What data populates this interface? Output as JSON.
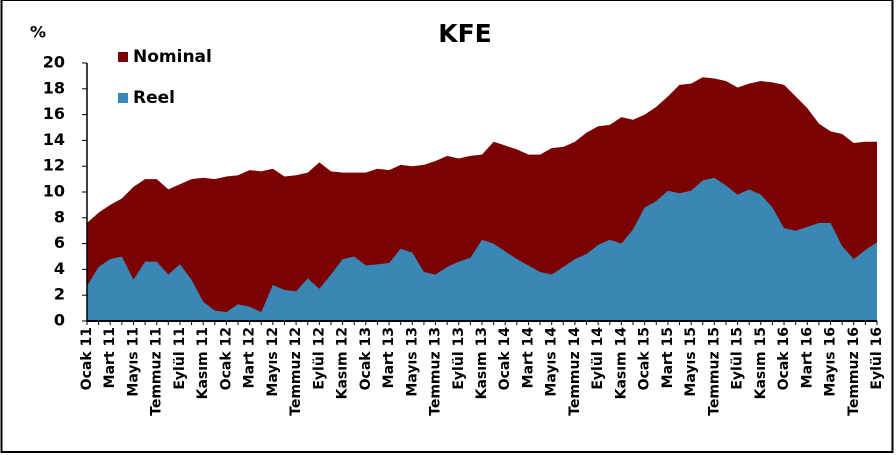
{
  "chart_data": {
    "type": "area",
    "title": "KFE",
    "y_label": "%",
    "categories": [
      "Ocak 11",
      null,
      "Mart 11",
      null,
      "Mayıs 11",
      null,
      "Temmuz 11",
      null,
      "Eylül 11",
      null,
      "Kasım 11",
      null,
      "Ocak 12",
      null,
      "Mart 12",
      null,
      "Mayıs 12",
      null,
      "Temmuz 12",
      null,
      "Eylül 12",
      null,
      "Kasım 12",
      null,
      "Ocak 13",
      null,
      "Mart 13",
      null,
      "Mayıs 13",
      null,
      "Temmuz 13",
      null,
      "Eylül 13",
      null,
      "Kasım 13",
      null,
      "Ocak 14",
      null,
      "Mart 14",
      null,
      "Mayıs 14",
      null,
      "Temmuz 14",
      null,
      "Eylül 14",
      null,
      "Kasım 14",
      null,
      "Ocak 15",
      null,
      "Mart 15",
      null,
      "Mayıs 15",
      null,
      "Temmuz 15",
      null,
      "Eylül 15",
      null,
      "Kasım 15",
      null,
      "Ocak 16",
      null,
      "Mart 16",
      null,
      "Mayıs 16",
      null,
      "Temmuz 16",
      null,
      "Eylül 16"
    ],
    "series": [
      {
        "name": "Nominal",
        "color": "#7b0000",
        "values": [
          7.6,
          8.4,
          9.0,
          9.5,
          10.4,
          11.0,
          11.0,
          10.2,
          10.6,
          11.0,
          11.1,
          11.0,
          11.2,
          11.3,
          11.7,
          11.6,
          11.8,
          11.2,
          11.3,
          11.5,
          12.3,
          11.6,
          11.5,
          11.5,
          11.5,
          11.8,
          11.7,
          12.1,
          12.0,
          12.1,
          12.4,
          12.8,
          12.6,
          12.8,
          12.9,
          13.9,
          13.6,
          13.3,
          12.9,
          12.9,
          13.4,
          13.5,
          13.9,
          14.6,
          15.1,
          15.2,
          15.8,
          15.6,
          16.0,
          16.6,
          17.4,
          18.3,
          18.4,
          18.9,
          18.8,
          18.6,
          18.1,
          18.4,
          18.6,
          18.5,
          18.3,
          17.4,
          16.5,
          15.3,
          14.7,
          14.5,
          13.8,
          13.9,
          13.9
        ]
      },
      {
        "name": "Reel",
        "color": "#3a87b5",
        "values": [
          2.7,
          4.2,
          4.8,
          5.0,
          3.2,
          4.6,
          4.6,
          3.6,
          4.4,
          3.2,
          1.5,
          0.8,
          0.7,
          1.3,
          1.1,
          0.7,
          2.8,
          2.4,
          2.3,
          3.3,
          2.5,
          3.6,
          4.8,
          5.0,
          4.3,
          4.4,
          4.5,
          5.6,
          5.3,
          3.8,
          3.6,
          4.2,
          4.6,
          4.9,
          6.3,
          6.0,
          5.4,
          4.8,
          4.3,
          3.8,
          3.6,
          4.2,
          4.8,
          5.2,
          5.9,
          6.3,
          6.0,
          7.1,
          8.8,
          9.3,
          10.1,
          9.9,
          10.1,
          10.9,
          11.1,
          10.5,
          9.8,
          10.2,
          9.8,
          8.8,
          7.2,
          7.0,
          7.3,
          7.6,
          7.6,
          5.8,
          4.8,
          5.5,
          6.1
        ]
      }
    ],
    "ylim": [
      0,
      20
    ],
    "yticks": [
      0,
      2,
      4,
      6,
      8,
      10,
      12,
      14,
      16,
      18,
      20
    ],
    "grid": false,
    "legend": "top-left"
  }
}
